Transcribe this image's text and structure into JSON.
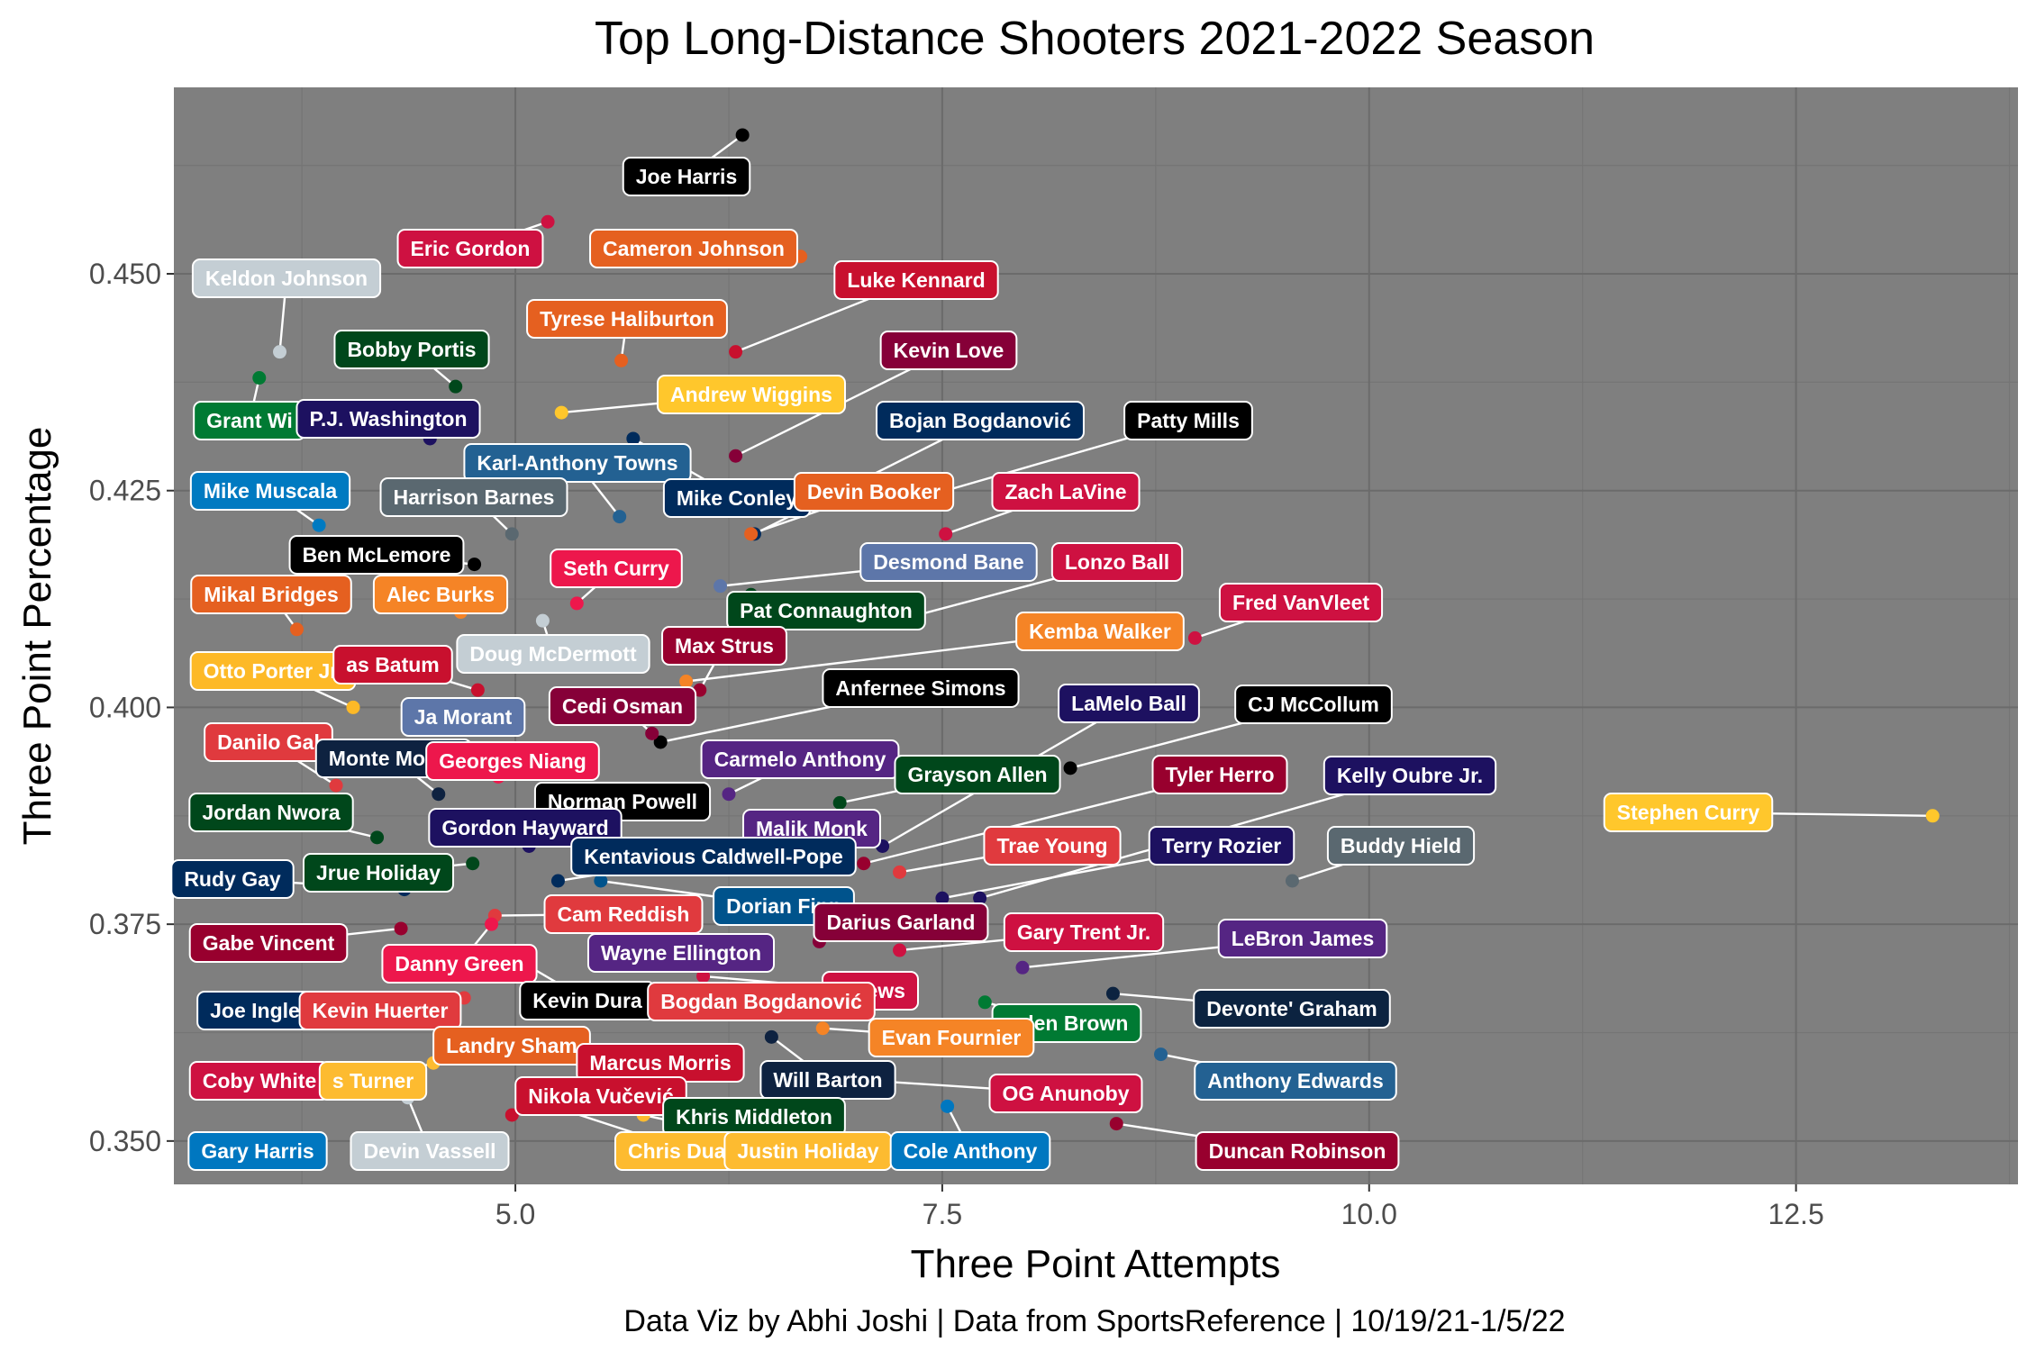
{
  "chart_data": {
    "type": "scatter",
    "title": "Top Long-Distance Shooters 2021-2022 Season",
    "xlabel": "Three Point Attempts",
    "ylabel": "Three Point Percentage",
    "caption": "Data Viz by Abhi Joshi | Data from SportsReference | 10/19/21-1/5/22",
    "xlim": [
      3.0,
      13.8
    ],
    "ylim": [
      0.345,
      0.4715
    ],
    "x_ticks": [
      5.0,
      7.5,
      10.0,
      12.5
    ],
    "x_tick_labels": [
      "5.0",
      "7.5",
      "10.0",
      "12.5"
    ],
    "y_ticks": [
      0.35,
      0.375,
      0.4,
      0.425,
      0.45
    ],
    "y_tick_labels": [
      "0.350",
      "0.375",
      "0.400",
      "0.425",
      "0.450"
    ],
    "grid": true,
    "panel_background": "#7f7f7f",
    "grid_major_color": "#6b6b6b",
    "grid_minor_color": "#757575",
    "points": [
      {
        "name": "Joe Harris",
        "x": 6.33,
        "y": 0.466,
        "color": "#000000",
        "text_color": "#ffffff"
      },
      {
        "name": "Eric Gordon",
        "x": 5.19,
        "y": 0.456,
        "color": "#ce1141",
        "text_color": "#ffffff"
      },
      {
        "name": "Cameron Johnson",
        "x": 6.67,
        "y": 0.452,
        "color": "#e56020",
        "text_color": "#ffffff"
      },
      {
        "name": "Keldon Johnson",
        "x": 3.62,
        "y": 0.441,
        "color": "#c4ced4",
        "text_color": "#ffffff"
      },
      {
        "name": "Luke Kennard",
        "x": 6.29,
        "y": 0.441,
        "color": "#c8102e",
        "text_color": "#ffffff"
      },
      {
        "name": "Tyrese Haliburton",
        "x": 5.62,
        "y": 0.44,
        "color": "#e56020",
        "text_color": "#ffffff"
      },
      {
        "name": "Bobby Portis",
        "x": 4.65,
        "y": 0.437,
        "color": "#00471b",
        "text_color": "#ffffff"
      },
      {
        "name": "Kevin Love",
        "x": 6.29,
        "y": 0.429,
        "color": "#860038",
        "text_color": "#ffffff"
      },
      {
        "name": "Grant Williams",
        "x": 3.5,
        "y": 0.438,
        "color": "#007a33",
        "text_color": "#ffffff"
      },
      {
        "name": "P.J. Washington",
        "x": 4.5,
        "y": 0.431,
        "color": "#1d1160",
        "text_color": "#ffffff"
      },
      {
        "name": "Andrew Wiggins",
        "x": 5.27,
        "y": 0.434,
        "color": "#ffc72c",
        "text_color": "#ffffff"
      },
      {
        "name": "Bojan Bogdanović",
        "x": 6.4,
        "y": 0.42,
        "color": "#002b5c",
        "text_color": "#ffffff"
      },
      {
        "name": "Patty Mills",
        "x": 7.52,
        "y": 0.425,
        "color": "#000000",
        "text_color": "#ffffff"
      },
      {
        "name": "Karl-Anthony Towns",
        "x": 5.61,
        "y": 0.422,
        "color": "#236192",
        "text_color": "#ffffff"
      },
      {
        "name": "Mike Conley",
        "x": 5.69,
        "y": 0.431,
        "color": "#002b5c",
        "text_color": "#ffffff"
      },
      {
        "name": "Mike Muscala",
        "x": 3.85,
        "y": 0.421,
        "color": "#007ac1",
        "text_color": "#ffffff"
      },
      {
        "name": "Harrison Barnes",
        "x": 4.98,
        "y": 0.42,
        "color": "#5a6870",
        "text_color": "#ffffff"
      },
      {
        "name": "Devin Booker",
        "x": 6.38,
        "y": 0.42,
        "color": "#e56020",
        "text_color": "#ffffff"
      },
      {
        "name": "Zach LaVine",
        "x": 7.52,
        "y": 0.42,
        "color": "#ce1141",
        "text_color": "#ffffff"
      },
      {
        "name": "Ben McLemore",
        "x": 4.76,
        "y": 0.4165,
        "color": "#000000",
        "text_color": "#ffffff"
      },
      {
        "name": "Seth Curry",
        "x": 5.36,
        "y": 0.412,
        "color": "#ed174c",
        "text_color": "#ffffff"
      },
      {
        "name": "Desmond Bane",
        "x": 6.2,
        "y": 0.414,
        "color": "#5d76a9",
        "text_color": "#ffffff"
      },
      {
        "name": "Lonzo Ball",
        "x": 7.23,
        "y": 0.41,
        "color": "#ce1141",
        "text_color": "#ffffff"
      },
      {
        "name": "Mikal Bridges",
        "x": 3.72,
        "y": 0.409,
        "color": "#e56020",
        "text_color": "#ffffff"
      },
      {
        "name": "Alec Burks",
        "x": 4.68,
        "y": 0.411,
        "color": "#f58426",
        "text_color": "#ffffff"
      },
      {
        "name": "Pat Connaughton",
        "x": 6.38,
        "y": 0.413,
        "color": "#00471b",
        "text_color": "#ffffff"
      },
      {
        "name": "Fred VanVleet",
        "x": 8.98,
        "y": 0.408,
        "color": "#ce1141",
        "text_color": "#ffffff"
      },
      {
        "name": "Max Strus",
        "x": 6.08,
        "y": 0.402,
        "color": "#98002e",
        "text_color": "#ffffff"
      },
      {
        "name": "Kemba Walker",
        "x": 6.0,
        "y": 0.403,
        "color": "#f58426",
        "text_color": "#ffffff"
      },
      {
        "name": "Doug McDermott",
        "x": 5.16,
        "y": 0.41,
        "color": "#c4ced4",
        "text_color": "#ffffff"
      },
      {
        "name": "Otto Porter Jr.",
        "x": 4.05,
        "y": 0.4,
        "color": "#fdb927",
        "text_color": "#ffffff"
      },
      {
        "name": "Nicolas Batum",
        "x": 4.78,
        "y": 0.402,
        "color": "#c8102e",
        "text_color": "#ffffff"
      },
      {
        "name": "Anfernee Simons",
        "x": 5.85,
        "y": 0.396,
        "color": "#000000",
        "text_color": "#ffffff"
      },
      {
        "name": "Ja Morant",
        "x": 4.9,
        "y": 0.398,
        "color": "#5d76a9",
        "text_color": "#ffffff"
      },
      {
        "name": "Cedi Osman",
        "x": 5.8,
        "y": 0.397,
        "color": "#860038",
        "text_color": "#ffffff"
      },
      {
        "name": "LaMelo Ball",
        "x": 7.15,
        "y": 0.384,
        "color": "#1d1160",
        "text_color": "#ffffff"
      },
      {
        "name": "CJ McCollum",
        "x": 8.25,
        "y": 0.393,
        "color": "#000000",
        "text_color": "#ffffff"
      },
      {
        "name": "Danilo Gallinari",
        "x": 3.95,
        "y": 0.391,
        "color": "#e03a3e",
        "text_color": "#ffffff"
      },
      {
        "name": "Monte Morris",
        "x": 4.55,
        "y": 0.39,
        "color": "#0e2240",
        "text_color": "#ffffff"
      },
      {
        "name": "Georges Niang",
        "x": 4.9,
        "y": 0.392,
        "color": "#ed174c",
        "text_color": "#ffffff"
      },
      {
        "name": "Carmelo Anthony",
        "x": 6.25,
        "y": 0.39,
        "color": "#552583",
        "text_color": "#ffffff"
      },
      {
        "name": "Grayson Allen",
        "x": 6.9,
        "y": 0.389,
        "color": "#00471b",
        "text_color": "#ffffff"
      },
      {
        "name": "Tyler Herro",
        "x": 7.04,
        "y": 0.382,
        "color": "#98002e",
        "text_color": "#ffffff"
      },
      {
        "name": "Kelly Oubre Jr.",
        "x": 7.72,
        "y": 0.378,
        "color": "#1d1160",
        "text_color": "#ffffff"
      },
      {
        "name": "Stephen Curry",
        "x": 13.3,
        "y": 0.3875,
        "color": "#ffc72c",
        "text_color": "#ffffff"
      },
      {
        "name": "Jordan Nwora",
        "x": 4.19,
        "y": 0.385,
        "color": "#00471b",
        "text_color": "#ffffff"
      },
      {
        "name": "Norman Powell",
        "x": 5.37,
        "y": 0.388,
        "color": "#000000",
        "text_color": "#ffffff"
      },
      {
        "name": "Gordon Hayward",
        "x": 5.08,
        "y": 0.384,
        "color": "#1d1160",
        "text_color": "#ffffff"
      },
      {
        "name": "Malik Monk",
        "x": 6.52,
        "y": 0.383,
        "color": "#552583",
        "text_color": "#ffffff"
      },
      {
        "name": "Kentavious Caldwell-Pope",
        "x": 5.25,
        "y": 0.38,
        "color": "#002b5c",
        "text_color": "#ffffff"
      },
      {
        "name": "Trae Young",
        "x": 7.25,
        "y": 0.381,
        "color": "#e03a3e",
        "text_color": "#ffffff"
      },
      {
        "name": "Terry Rozier",
        "x": 7.5,
        "y": 0.378,
        "color": "#1d1160",
        "text_color": "#ffffff"
      },
      {
        "name": "Buddy Hield",
        "x": 9.55,
        "y": 0.38,
        "color": "#5a6870",
        "text_color": "#ffffff"
      },
      {
        "name": "Rudy Gay",
        "x": 4.35,
        "y": 0.379,
        "color": "#002b5c",
        "text_color": "#ffffff"
      },
      {
        "name": "Jrue Holiday",
        "x": 4.75,
        "y": 0.382,
        "color": "#00471b",
        "text_color": "#ffffff"
      },
      {
        "name": "Dorian Finney-Smith",
        "x": 5.5,
        "y": 0.38,
        "color": "#00538c",
        "text_color": "#ffffff"
      },
      {
        "name": "Cam Reddish",
        "x": 4.88,
        "y": 0.376,
        "color": "#e03a3e",
        "text_color": "#ffffff"
      },
      {
        "name": "Darius Garland",
        "x": 6.78,
        "y": 0.373,
        "color": "#860038",
        "text_color": "#ffffff"
      },
      {
        "name": "Gary Trent Jr.",
        "x": 7.25,
        "y": 0.372,
        "color": "#ce1141",
        "text_color": "#ffffff"
      },
      {
        "name": "LeBron James",
        "x": 7.97,
        "y": 0.37,
        "color": "#552583",
        "text_color": "#ffffff"
      },
      {
        "name": "Gabe Vincent",
        "x": 4.33,
        "y": 0.3745,
        "color": "#98002e",
        "text_color": "#ffffff"
      },
      {
        "name": "Wayne Ellington",
        "x": 5.9,
        "y": 0.372,
        "color": "#552583",
        "text_color": "#ffffff"
      },
      {
        "name": "Danny Green",
        "x": 4.86,
        "y": 0.375,
        "color": "#ed174c",
        "text_color": "#ffffff"
      },
      {
        "name": "Kevin Durant",
        "x": 5.05,
        "y": 0.3705,
        "color": "#000000",
        "text_color": "#ffffff"
      },
      {
        "name": "Garrison Mathews",
        "x": 6.1,
        "y": 0.369,
        "color": "#ce1141",
        "text_color": "#ffffff"
      },
      {
        "name": "Bogdan Bogdanović",
        "x": 5.8,
        "y": 0.366,
        "color": "#e03a3e",
        "text_color": "#ffffff"
      },
      {
        "name": "Jaylen Brown",
        "x": 7.75,
        "y": 0.366,
        "color": "#007a33",
        "text_color": "#ffffff"
      },
      {
        "name": "Devonte' Graham",
        "x": 8.5,
        "y": 0.367,
        "color": "#0c2340",
        "text_color": "#ffffff"
      },
      {
        "name": "Joe Ingles",
        "x": 3.62,
        "y": 0.365,
        "color": "#002b5c",
        "text_color": "#ffffff"
      },
      {
        "name": "Kevin Huerter",
        "x": 4.7,
        "y": 0.3665,
        "color": "#e03a3e",
        "text_color": "#ffffff"
      },
      {
        "name": "Evan Fournier",
        "x": 6.8,
        "y": 0.363,
        "color": "#f58426",
        "text_color": "#ffffff"
      },
      {
        "name": "Landry Shamet",
        "x": 4.63,
        "y": 0.362,
        "color": "#e56020",
        "text_color": "#ffffff"
      },
      {
        "name": "Marcus Morris",
        "x": 5.55,
        "y": 0.36,
        "color": "#c8102e",
        "text_color": "#ffffff"
      },
      {
        "name": "Will Barton",
        "x": 6.5,
        "y": 0.362,
        "color": "#0e2240",
        "text_color": "#ffffff"
      },
      {
        "name": "OG Anunoby",
        "x": 7.05,
        "y": 0.357,
        "color": "#ce1141",
        "text_color": "#ffffff"
      },
      {
        "name": "Anthony Edwards",
        "x": 8.78,
        "y": 0.36,
        "color": "#236192",
        "text_color": "#ffffff"
      },
      {
        "name": "Coby White",
        "x": 3.72,
        "y": 0.358,
        "color": "#ce1141",
        "text_color": "#ffffff"
      },
      {
        "name": "Myles Turner",
        "x": 4.52,
        "y": 0.359,
        "color": "#fdbb30",
        "text_color": "#ffffff"
      },
      {
        "name": "Nikola Vučević",
        "x": 4.98,
        "y": 0.353,
        "color": "#c8102e",
        "text_color": "#ffffff"
      },
      {
        "name": "Khris Middleton",
        "x": 5.3,
        "y": 0.356,
        "color": "#00471b",
        "text_color": "#ffffff"
      },
      {
        "name": "Gary Harris",
        "x": 3.72,
        "y": 0.349,
        "color": "#0077c0",
        "text_color": "#ffffff"
      },
      {
        "name": "Devin Vassell",
        "x": 4.37,
        "y": 0.355,
        "color": "#c4ced4",
        "text_color": "#ffffff"
      },
      {
        "name": "Chris Duarte",
        "x": 5.22,
        "y": 0.354,
        "color": "#fdbb30",
        "text_color": "#ffffff"
      },
      {
        "name": "Justin Holiday",
        "x": 5.75,
        "y": 0.353,
        "color": "#fdbb30",
        "text_color": "#ffffff"
      },
      {
        "name": "Cole Anthony",
        "x": 7.53,
        "y": 0.354,
        "color": "#0077c0",
        "text_color": "#ffffff"
      },
      {
        "name": "Duncan Robinson",
        "x": 8.52,
        "y": 0.352,
        "color": "#98002e",
        "text_color": "#ffffff"
      }
    ]
  }
}
